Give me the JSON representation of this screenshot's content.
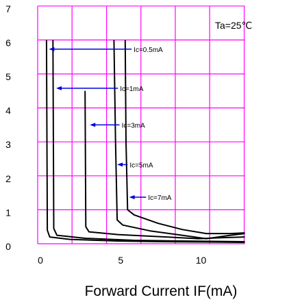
{
  "chart_data": {
    "type": "line",
    "title": "",
    "xlabel": "Forward Current IF(mA)",
    "ylabel": "",
    "x_ticks": [
      0,
      5,
      10
    ],
    "y_ticks": [
      0,
      1,
      2,
      3,
      4,
      5,
      6,
      7
    ],
    "xlim": [
      0,
      12.9
    ],
    "ylim": [
      0,
      7
    ],
    "grid": true,
    "grid_x_values": [
      0,
      2.14,
      4.29,
      6.43,
      8.57,
      10.71,
      12.86
    ],
    "grid_y_values": [
      0,
      1,
      2,
      3,
      4,
      5,
      6,
      7
    ],
    "grid_color": "#ff00ff",
    "curve_color": "#000000",
    "arrow_color": "#0000dd",
    "annotation": "Ta=25℃",
    "series": [
      {
        "name": "Ic=0.5mA",
        "points": [
          [
            0.55,
            6.0
          ],
          [
            0.6,
            0.4
          ],
          [
            0.75,
            0.2
          ],
          [
            2.0,
            0.13
          ],
          [
            5.0,
            0.08
          ],
          [
            8.0,
            0.06
          ],
          [
            11.0,
            0.05
          ],
          [
            12.9,
            0.04
          ]
        ]
      },
      {
        "name": "Ic=1mA",
        "points": [
          [
            0.95,
            6.0
          ],
          [
            1.0,
            0.45
          ],
          [
            1.2,
            0.25
          ],
          [
            3.0,
            0.16
          ],
          [
            6.0,
            0.1
          ],
          [
            9.0,
            0.08
          ],
          [
            12.9,
            0.06
          ]
        ]
      },
      {
        "name": "Ic=3mA",
        "points": [
          [
            2.95,
            4.5
          ],
          [
            3.0,
            0.5
          ],
          [
            3.2,
            0.35
          ],
          [
            5.0,
            0.27
          ],
          [
            8.0,
            0.2
          ],
          [
            10.0,
            0.15
          ],
          [
            11.5,
            0.18
          ],
          [
            12.9,
            0.2
          ]
        ]
      },
      {
        "name": "Ic=5mA",
        "points": [
          [
            4.75,
            6.0
          ],
          [
            4.85,
            3.0
          ],
          [
            4.95,
            0.7
          ],
          [
            5.3,
            0.55
          ],
          [
            7.0,
            0.38
          ],
          [
            9.0,
            0.25
          ],
          [
            10.5,
            0.15
          ],
          [
            12.0,
            0.25
          ],
          [
            12.9,
            0.3
          ]
        ]
      },
      {
        "name": "Ic=7mA",
        "points": [
          [
            5.45,
            6.0
          ],
          [
            5.5,
            3.0
          ],
          [
            5.6,
            1.0
          ],
          [
            6.0,
            0.85
          ],
          [
            7.5,
            0.6
          ],
          [
            9.0,
            0.42
          ],
          [
            10.5,
            0.3
          ],
          [
            12.0,
            0.3
          ],
          [
            12.9,
            0.32
          ]
        ]
      }
    ],
    "arrows": [
      {
        "label": "Ic=0.5mA",
        "tail_x": 5.85,
        "head_x": 0.7,
        "y": 5.73
      },
      {
        "label": "Ic=1mA",
        "tail_x": 5.0,
        "head_x": 1.15,
        "y": 4.58
      },
      {
        "label": "Ic=3mA",
        "tail_x": 5.1,
        "head_x": 3.25,
        "y": 3.5
      },
      {
        "label": "Ic=5mA",
        "tail_x": 5.6,
        "head_x": 4.95,
        "y": 2.33
      },
      {
        "label": "Ic=7mA",
        "tail_x": 6.75,
        "head_x": 5.7,
        "y": 1.37
      }
    ]
  }
}
